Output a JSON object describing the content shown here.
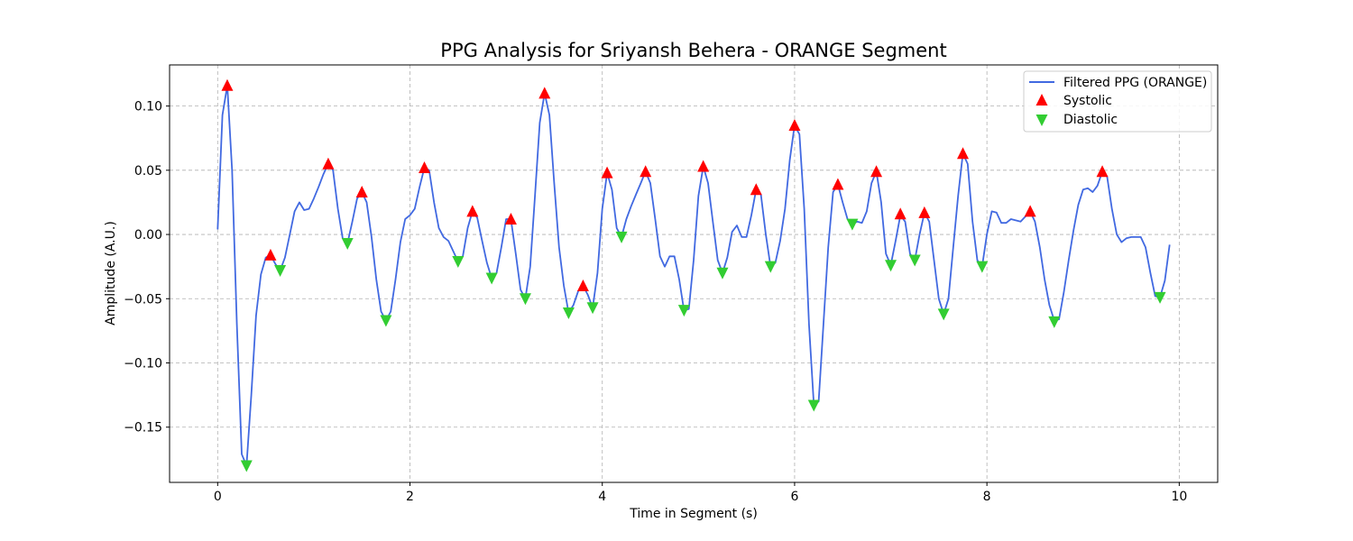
{
  "chart_data": {
    "type": "line",
    "title": "PPG Analysis for Sriyansh Behera - ORANGE Segment",
    "xlabel": "Time in Segment (s)",
    "ylabel": "Amplitude (A.U.)",
    "xlim": [
      -0.5,
      10.4
    ],
    "ylim": [
      -0.193,
      0.132
    ],
    "xticks": [
      0,
      2,
      4,
      6,
      8,
      10
    ],
    "xtick_labels": [
      "0",
      "2",
      "4",
      "6",
      "8",
      "10"
    ],
    "yticks": [
      0.1,
      0.05,
      0.0,
      -0.05,
      -0.1,
      -0.15
    ],
    "ytick_labels": [
      "0.10",
      "0.05",
      "0.00",
      "−0.05",
      "−0.10",
      "−0.15"
    ],
    "grid": true,
    "legend_position": "top-right",
    "series": [
      {
        "name": "Filtered PPG (ORANGE)",
        "style": "line",
        "color": "#4169e1",
        "x": [
          0.0,
          0.05,
          0.1,
          0.15,
          0.2,
          0.25,
          0.3,
          0.35,
          0.4,
          0.45,
          0.5,
          0.55,
          0.6,
          0.65,
          0.7,
          0.75,
          0.8,
          0.85,
          0.9,
          0.95,
          1.0,
          1.05,
          1.1,
          1.15,
          1.2,
          1.25,
          1.3,
          1.35,
          1.4,
          1.45,
          1.5,
          1.55,
          1.6,
          1.65,
          1.7,
          1.75,
          1.8,
          1.85,
          1.9,
          1.95,
          2.0,
          2.05,
          2.1,
          2.15,
          2.2,
          2.25,
          2.3,
          2.35,
          2.4,
          2.45,
          2.5,
          2.55,
          2.6,
          2.65,
          2.7,
          2.75,
          2.8,
          2.85,
          2.9,
          2.95,
          3.0,
          3.05,
          3.1,
          3.15,
          3.2,
          3.25,
          3.3,
          3.35,
          3.4,
          3.45,
          3.5,
          3.55,
          3.6,
          3.65,
          3.7,
          3.75,
          3.8,
          3.85,
          3.9,
          3.95,
          4.0,
          4.05,
          4.1,
          4.15,
          4.2,
          4.25,
          4.3,
          4.35,
          4.4,
          4.45,
          4.5,
          4.55,
          4.6,
          4.65,
          4.7,
          4.75,
          4.8,
          4.85,
          4.9,
          4.95,
          5.0,
          5.05,
          5.1,
          5.15,
          5.2,
          5.25,
          5.3,
          5.35,
          5.4,
          5.45,
          5.5,
          5.55,
          5.6,
          5.65,
          5.7,
          5.75,
          5.8,
          5.85,
          5.9,
          5.95,
          6.0,
          6.05,
          6.1,
          6.15,
          6.2,
          6.25,
          6.3,
          6.35,
          6.4,
          6.45,
          6.5,
          6.55,
          6.6,
          6.65,
          6.7,
          6.75,
          6.8,
          6.85,
          6.9,
          6.95,
          7.0,
          7.05,
          7.1,
          7.15,
          7.2,
          7.25,
          7.3,
          7.35,
          7.4,
          7.45,
          7.5,
          7.55,
          7.6,
          7.65,
          7.7,
          7.75,
          7.8,
          7.85,
          7.9,
          7.95,
          8.0,
          8.05,
          8.1,
          8.15,
          8.2,
          8.25,
          8.3,
          8.35,
          8.4,
          8.45,
          8.5,
          8.55,
          8.6,
          8.65,
          8.7,
          8.75,
          8.8,
          8.85,
          8.9,
          8.95,
          9.0,
          9.05,
          9.1,
          9.15,
          9.2,
          9.25,
          9.3,
          9.35,
          9.4,
          9.45,
          9.5,
          9.55,
          9.6,
          9.65,
          9.7,
          9.75,
          9.8,
          9.85,
          9.9
        ],
        "y": [
          0.004,
          0.093,
          0.116,
          0.05,
          -0.07,
          -0.171,
          -0.18,
          -0.125,
          -0.063,
          -0.031,
          -0.018,
          -0.016,
          -0.023,
          -0.028,
          -0.018,
          0.0,
          0.018,
          0.025,
          0.019,
          0.02,
          0.028,
          0.037,
          0.047,
          0.055,
          0.05,
          0.02,
          -0.003,
          -0.007,
          0.01,
          0.028,
          0.033,
          0.025,
          -0.002,
          -0.035,
          -0.06,
          -0.067,
          -0.06,
          -0.035,
          -0.006,
          0.012,
          0.015,
          0.02,
          0.037,
          0.052,
          0.05,
          0.025,
          0.005,
          -0.002,
          -0.005,
          -0.013,
          -0.021,
          -0.017,
          0.005,
          0.018,
          0.013,
          -0.005,
          -0.022,
          -0.034,
          -0.03,
          -0.01,
          0.012,
          0.012,
          -0.015,
          -0.043,
          -0.05,
          -0.025,
          0.03,
          0.087,
          0.11,
          0.093,
          0.04,
          -0.01,
          -0.04,
          -0.061,
          -0.055,
          -0.044,
          -0.04,
          -0.047,
          -0.057,
          -0.03,
          0.02,
          0.048,
          0.035,
          0.005,
          -0.002,
          0.012,
          0.022,
          0.031,
          0.04,
          0.049,
          0.04,
          0.012,
          -0.017,
          -0.025,
          -0.017,
          -0.017,
          -0.035,
          -0.059,
          -0.058,
          -0.02,
          0.03,
          0.053,
          0.04,
          0.01,
          -0.02,
          -0.03,
          -0.018,
          0.002,
          0.007,
          -0.002,
          -0.002,
          0.015,
          0.035,
          0.031,
          0.0,
          -0.025,
          -0.022,
          -0.005,
          0.02,
          0.058,
          0.085,
          0.078,
          0.02,
          -0.07,
          -0.133,
          -0.13,
          -0.07,
          -0.01,
          0.033,
          0.039,
          0.025,
          0.012,
          0.008,
          0.01,
          0.009,
          0.018,
          0.04,
          0.049,
          0.025,
          -0.015,
          -0.024,
          -0.005,
          0.015,
          0.01,
          -0.015,
          -0.02,
          0.0,
          0.017,
          0.01,
          -0.02,
          -0.05,
          -0.062,
          -0.05,
          -0.01,
          0.03,
          0.063,
          0.055,
          0.01,
          -0.02,
          -0.025,
          0.0,
          0.018,
          0.017,
          0.009,
          0.009,
          0.012,
          0.011,
          0.01,
          0.014,
          0.018,
          0.01,
          -0.01,
          -0.035,
          -0.055,
          -0.067,
          -0.066,
          -0.045,
          -0.02,
          0.003,
          0.023,
          0.035,
          0.036,
          0.033,
          0.038,
          0.049,
          0.045,
          0.02,
          0.0,
          -0.006,
          -0.003,
          -0.002,
          -0.002,
          -0.002,
          -0.01,
          -0.03,
          -0.048,
          -0.049,
          -0.036,
          -0.008
        ]
      },
      {
        "name": "Systolic",
        "style": "marker-up",
        "color": "#ff0000",
        "x": [
          0.1,
          0.55,
          1.15,
          1.5,
          2.15,
          2.65,
          3.05,
          3.4,
          3.8,
          4.05,
          4.45,
          5.05,
          5.6,
          6.0,
          6.45,
          6.85,
          7.1,
          7.35,
          7.75,
          8.45,
          9.2
        ],
        "y": [
          0.116,
          -0.016,
          0.055,
          0.033,
          0.052,
          0.018,
          0.012,
          0.11,
          -0.04,
          0.048,
          0.049,
          0.053,
          0.035,
          0.085,
          0.039,
          0.049,
          0.016,
          0.017,
          0.063,
          0.018,
          0.049
        ]
      },
      {
        "name": "Diastolic",
        "style": "marker-down",
        "color": "#32cd32",
        "x": [
          0.3,
          0.65,
          1.35,
          1.75,
          2.5,
          2.85,
          3.2,
          3.65,
          3.9,
          4.2,
          4.85,
          5.25,
          5.75,
          6.2,
          6.6,
          7.0,
          7.25,
          7.55,
          7.95,
          8.7,
          9.8
        ],
        "y": [
          -0.18,
          -0.028,
          -0.007,
          -0.067,
          -0.021,
          -0.034,
          -0.05,
          -0.061,
          -0.057,
          -0.002,
          -0.059,
          -0.03,
          -0.025,
          -0.133,
          0.008,
          -0.024,
          -0.02,
          -0.062,
          -0.025,
          -0.068,
          -0.049
        ]
      }
    ]
  }
}
